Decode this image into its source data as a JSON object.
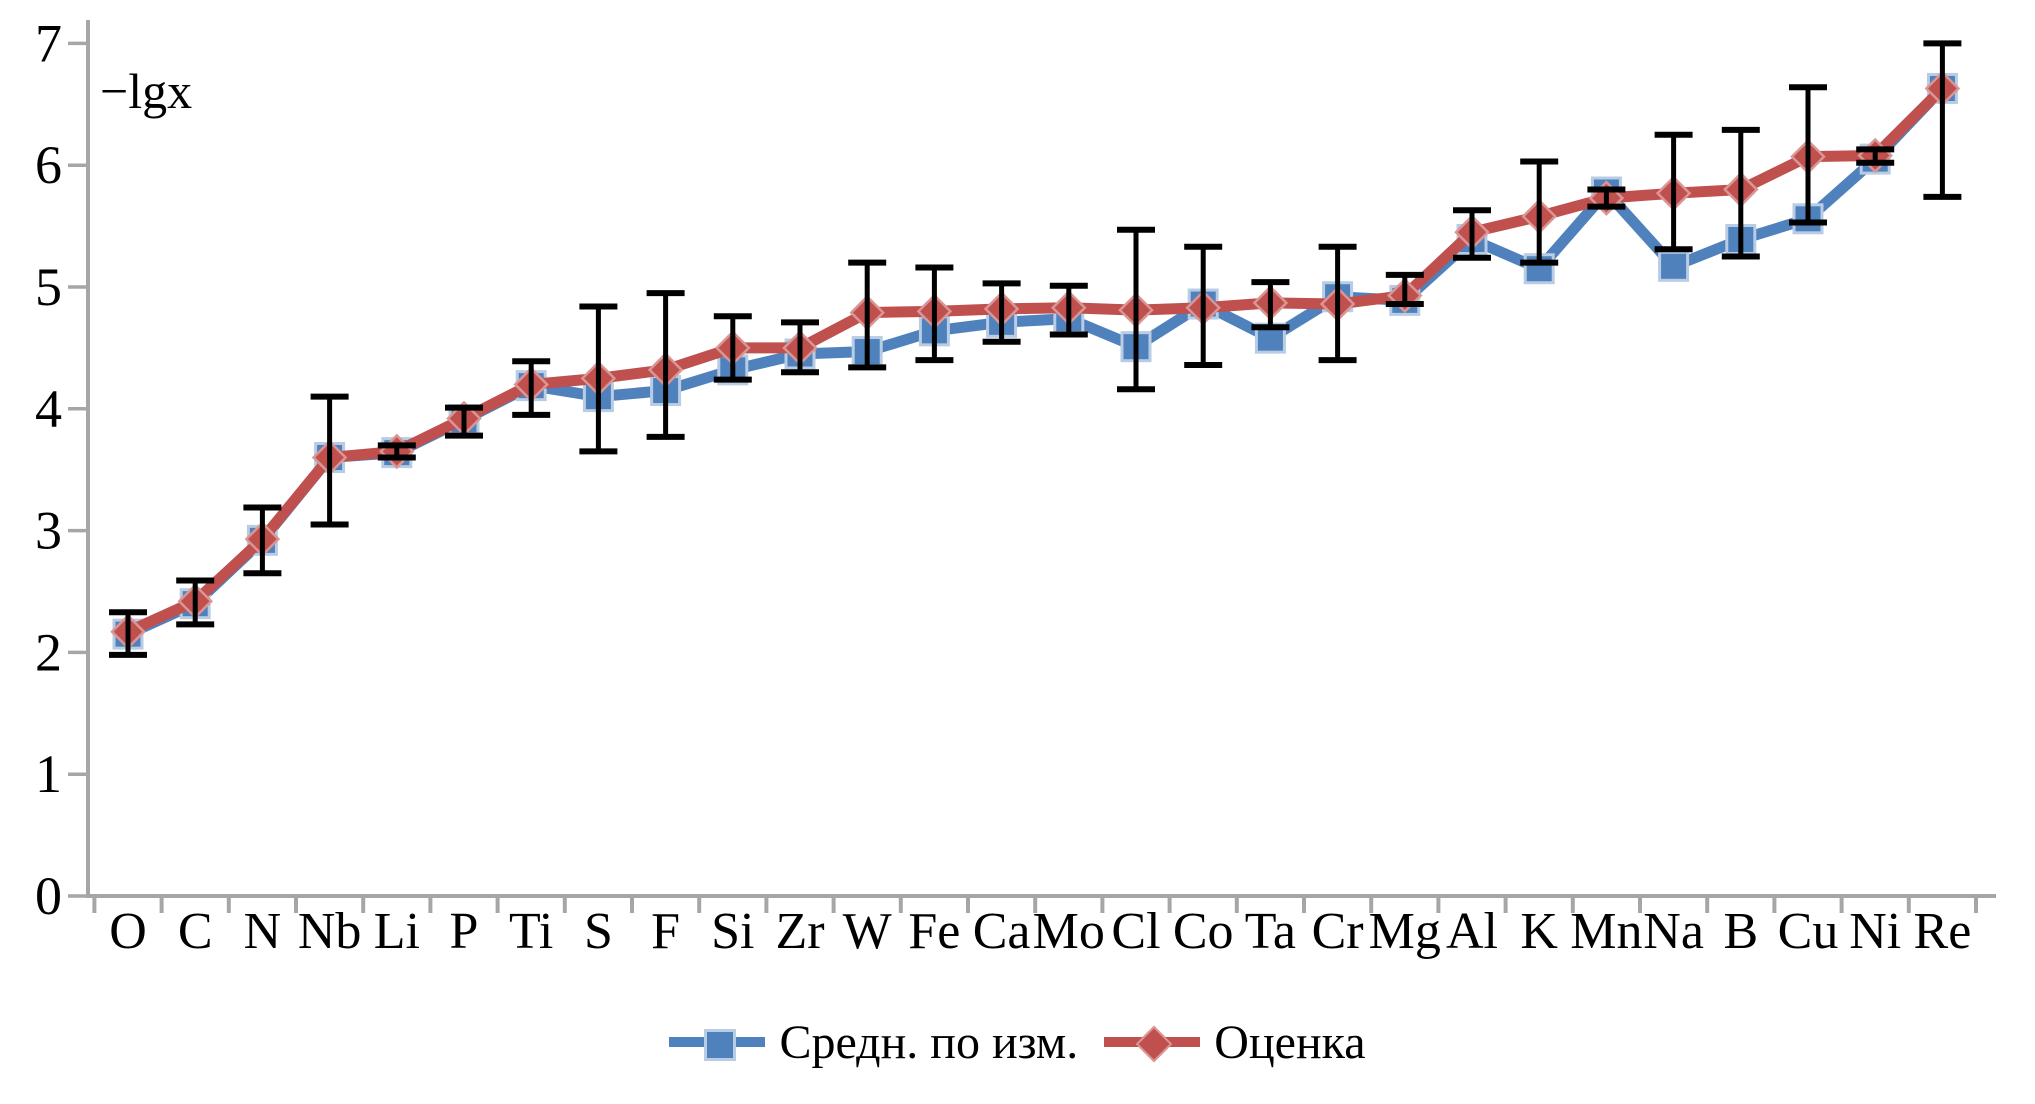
{
  "figure": {
    "background": "#ffffff",
    "axis_color": "#a6a6a6",
    "text_color": "#000000",
    "error_bar_color": "#000000"
  },
  "chart_data": {
    "type": "line",
    "title": "",
    "ylabel": "−lgx",
    "xlabel": "",
    "grid": false,
    "legend_position": "bottom-center",
    "ylim": [
      0,
      7
    ],
    "y_ticks": [
      0,
      1,
      2,
      3,
      4,
      5,
      6,
      7
    ],
    "categories": [
      "O",
      "C",
      "N",
      "Nb",
      "Li",
      "P",
      "Ti",
      "S",
      "F",
      "Si",
      "Zr",
      "W",
      "Fe",
      "Ca",
      "Mo",
      "Cl",
      "Co",
      "Ta",
      "Cr",
      "Mg",
      "Al",
      "K",
      "Mn",
      "Na",
      "B",
      "Cu",
      "Ni",
      "Re"
    ],
    "series": [
      {
        "name": "Средн. по изм.",
        "marker": "square",
        "color": "#4f81bd",
        "marker_border_color": "#b8cce4",
        "values": [
          2.15,
          2.4,
          2.92,
          3.6,
          3.64,
          3.91,
          4.19,
          4.1,
          4.15,
          4.32,
          4.45,
          4.47,
          4.64,
          4.71,
          4.74,
          4.51,
          4.86,
          4.58,
          4.92,
          4.89,
          5.39,
          5.15,
          5.78,
          5.17,
          5.39,
          5.56,
          6.05,
          6.63
        ]
      },
      {
        "name": "Оценка",
        "marker": "diamond",
        "color": "#c0504d",
        "marker_border_color": "#d99694",
        "values": [
          2.17,
          2.42,
          2.93,
          3.6,
          3.65,
          3.92,
          4.2,
          4.25,
          4.32,
          4.5,
          4.5,
          4.79,
          4.8,
          4.82,
          4.83,
          4.81,
          4.83,
          4.87,
          4.86,
          4.93,
          5.45,
          5.58,
          5.73,
          5.77,
          5.8,
          6.07,
          6.08,
          6.63
        ],
        "error_low": [
          1.98,
          2.23,
          2.65,
          3.05,
          3.6,
          3.78,
          3.95,
          3.65,
          3.77,
          4.24,
          4.3,
          4.34,
          4.4,
          4.55,
          4.61,
          4.16,
          4.36,
          4.67,
          4.4,
          4.86,
          5.24,
          5.2,
          5.66,
          5.31,
          5.25,
          5.53,
          6.02,
          5.74
        ],
        "error_high": [
          2.33,
          2.59,
          3.19,
          4.1,
          3.7,
          4.01,
          4.39,
          4.84,
          4.95,
          4.76,
          4.71,
          5.2,
          5.16,
          5.03,
          5.01,
          5.47,
          5.33,
          5.04,
          5.33,
          5.1,
          5.63,
          6.03,
          5.8,
          6.25,
          6.29,
          6.64,
          6.13,
          7.0
        ]
      }
    ]
  }
}
